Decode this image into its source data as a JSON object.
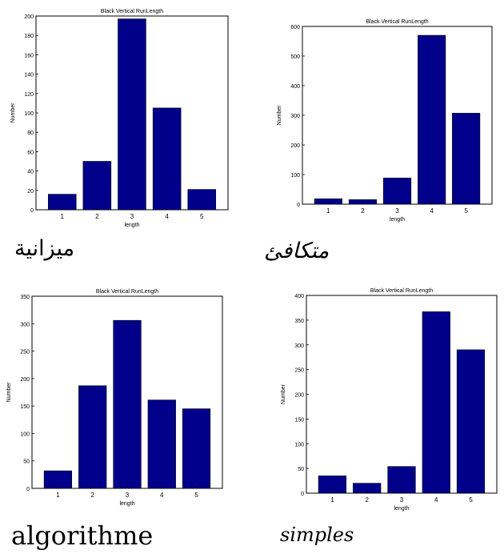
{
  "bar_color": "#00008b",
  "words": [
    "ميزانية",
    "متكافئ",
    "algorithme",
    "simples"
  ],
  "chart_data": [
    {
      "type": "bar",
      "title": "Black Vertical RunLength",
      "xlabel": "length",
      "ylabel": "Number",
      "categories": [
        "1",
        "2",
        "3",
        "4",
        "5"
      ],
      "values": [
        16,
        50,
        197,
        105,
        21
      ],
      "ylim": [
        0,
        200
      ],
      "yticks": [
        0,
        20,
        40,
        60,
        80,
        100,
        120,
        140,
        160,
        180,
        200
      ]
    },
    {
      "type": "bar",
      "title": "Black Vertical RunLength",
      "xlabel": "length",
      "ylabel": "Number",
      "categories": [
        "1",
        "2",
        "3",
        "4",
        "5"
      ],
      "values": [
        18,
        15,
        88,
        570,
        307
      ],
      "ylim": [
        0,
        600
      ],
      "yticks": [
        0,
        100,
        200,
        300,
        400,
        500,
        600
      ],
      "yticklabels": [
        "0",
        "100",
        "200",
        "300",
        "400",
        "500",
        "600"
      ]
    },
    {
      "type": "bar",
      "title": "Black Vertical RunLength",
      "xlabel": "length",
      "ylabel": "Number",
      "categories": [
        "1",
        "2",
        "3",
        "4",
        "5"
      ],
      "values": [
        32,
        187,
        306,
        161,
        145
      ],
      "ylim": [
        0,
        350
      ],
      "yticks": [
        0,
        50,
        100,
        150,
        200,
        250,
        300,
        350
      ]
    },
    {
      "type": "bar",
      "title": "Black Vertical RunLength",
      "xlabel": "length",
      "ylabel": "Number",
      "categories": [
        "1",
        "2",
        "3",
        "4",
        "5"
      ],
      "values": [
        35,
        20,
        54,
        367,
        290
      ],
      "ylim": [
        0,
        400
      ],
      "yticks": [
        0,
        50,
        100,
        150,
        200,
        250,
        300,
        350,
        400
      ]
    }
  ]
}
